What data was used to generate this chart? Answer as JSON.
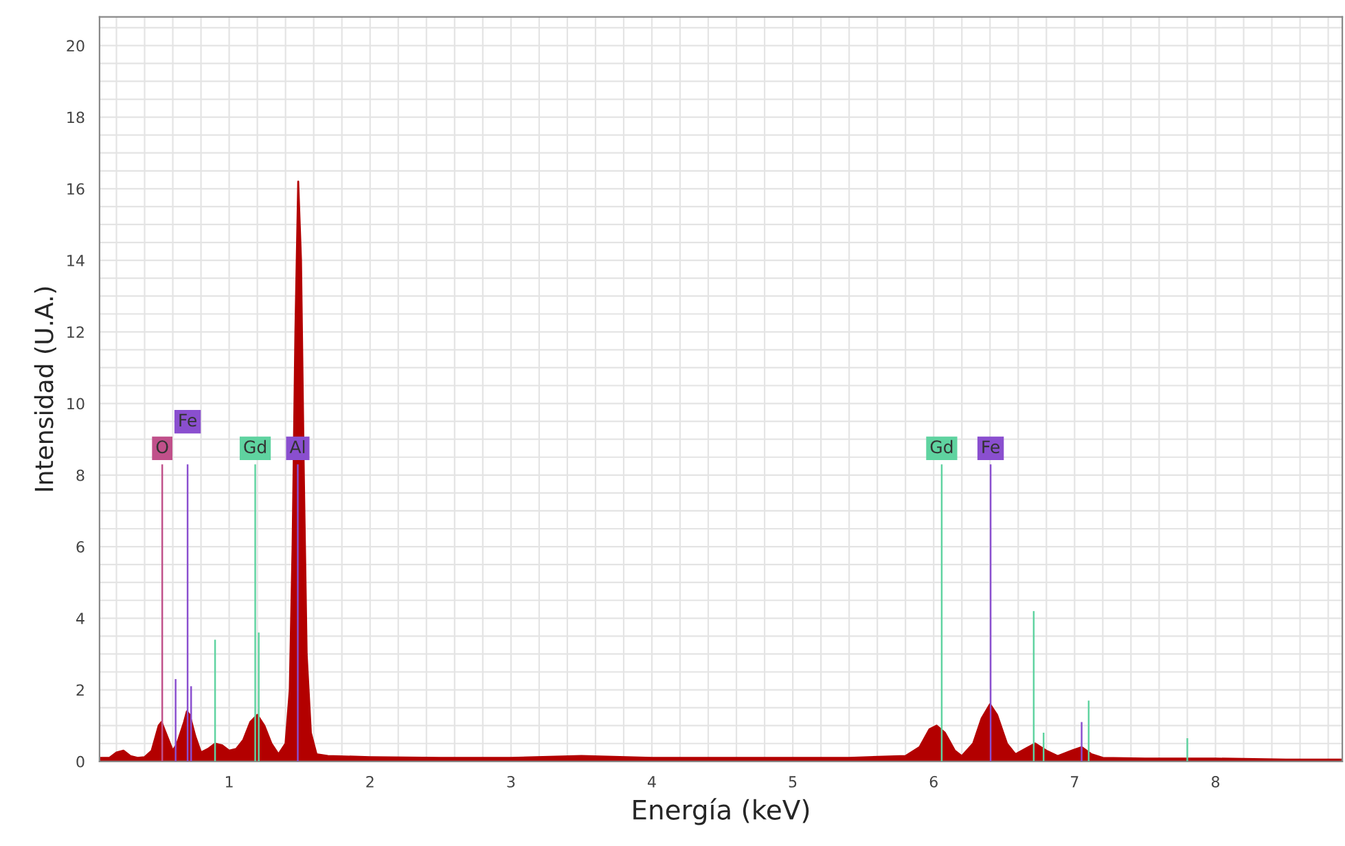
{
  "chart_data": {
    "type": "area",
    "xlabel": "Energía (keV)",
    "ylabel": "Intensidad (U.A.)",
    "xlim": [
      0.08,
      8.9
    ],
    "ylim": [
      0,
      20.8
    ],
    "xticks": [
      1,
      2,
      3,
      4,
      5,
      6,
      7,
      8
    ],
    "yticks": [
      0,
      2,
      4,
      6,
      8,
      10,
      12,
      14,
      16,
      18,
      20
    ],
    "grid": true,
    "legend": false,
    "series": [
      {
        "color": "#b30000",
        "x": [
          0.08,
          0.15,
          0.2,
          0.25,
          0.3,
          0.35,
          0.4,
          0.45,
          0.5,
          0.52,
          0.56,
          0.6,
          0.63,
          0.68,
          0.7,
          0.72,
          0.76,
          0.8,
          0.85,
          0.9,
          0.95,
          1.0,
          1.05,
          1.1,
          1.15,
          1.2,
          1.25,
          1.3,
          1.35,
          1.4,
          1.43,
          1.45,
          1.47,
          1.49,
          1.51,
          1.53,
          1.55,
          1.58,
          1.62,
          1.7,
          2.0,
          2.5,
          3.0,
          3.5,
          4.0,
          4.5,
          5.0,
          5.4,
          5.8,
          5.9,
          5.97,
          6.02,
          6.08,
          6.15,
          6.2,
          6.28,
          6.34,
          6.4,
          6.45,
          6.52,
          6.58,
          6.65,
          6.72,
          6.8,
          6.88,
          6.98,
          7.05,
          7.12,
          7.2,
          7.5,
          8.0,
          8.5,
          8.9
        ],
        "values": [
          0.1,
          0.1,
          0.25,
          0.3,
          0.15,
          0.1,
          0.12,
          0.3,
          1.0,
          1.1,
          0.7,
          0.3,
          0.5,
          1.1,
          1.4,
          1.3,
          0.7,
          0.25,
          0.35,
          0.5,
          0.45,
          0.3,
          0.35,
          0.6,
          1.1,
          1.3,
          1.0,
          0.5,
          0.2,
          0.5,
          2.0,
          6,
          12,
          16.2,
          14,
          8,
          3,
          0.8,
          0.2,
          0.15,
          0.12,
          0.1,
          0.1,
          0.15,
          0.1,
          0.1,
          0.1,
          0.1,
          0.15,
          0.4,
          0.9,
          1.0,
          0.8,
          0.3,
          0.15,
          0.5,
          1.2,
          1.6,
          1.3,
          0.5,
          0.2,
          0.35,
          0.5,
          0.3,
          0.15,
          0.3,
          0.4,
          0.2,
          0.1,
          0.08,
          0.08,
          0.05,
          0.05
        ]
      },
      {
        "type": "bar",
        "x": [
          0.525,
          0.62,
          0.705,
          0.73,
          0.9,
          1.185,
          1.21,
          1.487,
          6.057,
          6.404,
          6.71,
          6.78,
          7.05,
          7.1,
          7.8
        ],
        "values": [
          8.3,
          2.3,
          8.3,
          2.1,
          3.4,
          8.3,
          3.6,
          8.3,
          8.3,
          8.3,
          4.2,
          0.8,
          1.1,
          1.7,
          0.65
        ],
        "colors": [
          "#c0508a",
          "#8a4fcf",
          "#8a4fcf",
          "#8a4fcf",
          "#5fd3a0",
          "#5fd3a0",
          "#5fd3a0",
          "#8a4fcf",
          "#5fd3a0",
          "#8a4fcf",
          "#5fd3a0",
          "#5fd3a0",
          "#8a4fcf",
          "#5fd3a0",
          "#5fd3a0"
        ]
      }
    ],
    "annotations": [
      {
        "text": "O",
        "x": 0.525,
        "y": 8.3
      },
      {
        "text": "Fe",
        "x": 0.705,
        "y": 8.3
      },
      {
        "text": "Gd",
        "x": 1.185,
        "y": 8.3
      },
      {
        "text": "Al",
        "x": 1.487,
        "y": 8.3
      },
      {
        "text": "Gd",
        "x": 6.057,
        "y": 8.3
      },
      {
        "text": "Fe",
        "x": 6.404,
        "y": 8.3
      }
    ]
  }
}
